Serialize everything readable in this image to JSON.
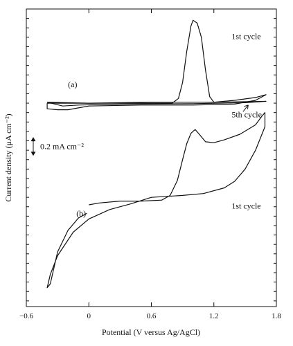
{
  "chart_data": {
    "type": "line",
    "xlabel": "Potential (V versus Ag/AgCl)",
    "ylabel": "Current density (μA cm⁻²)",
    "xlim": [
      -0.6,
      1.8
    ],
    "ylim": [
      -2.16,
      1.0
    ],
    "x_ticks": [
      -0.6,
      0,
      0.6,
      1.2,
      1.8
    ],
    "x_tick_labels": [
      "−0.6",
      "0",
      "0.6",
      "1.2",
      "1.8"
    ],
    "y_minor_step": 0.1,
    "grid": false,
    "scale_bar": {
      "label": "0.2 mA cm⁻²",
      "value": 0.2,
      "y_from": -0.56,
      "y_to": -0.36
    },
    "annotations": [
      {
        "text": "(a)",
        "x": -0.2,
        "y": 0.17
      },
      {
        "text": "1st cycle",
        "x": 1.37,
        "y": 0.68
      },
      {
        "text": "5th cycle",
        "x": 1.37,
        "y": -0.15
      },
      {
        "text": "(b)",
        "x": -0.12,
        "y": -1.2
      },
      {
        "text": "1st cycle",
        "x": 1.37,
        "y": -1.12
      }
    ],
    "series": [
      {
        "points": [
          [
            -0.4,
            0.0
          ],
          [
            0.0,
            0.0
          ],
          [
            0.4,
            0.0
          ],
          [
            0.8,
            0.0
          ],
          [
            0.86,
            0.05
          ],
          [
            0.9,
            0.22
          ],
          [
            0.94,
            0.55
          ],
          [
            0.98,
            0.82
          ],
          [
            1.0,
            0.88
          ],
          [
            1.04,
            0.85
          ],
          [
            1.08,
            0.7
          ],
          [
            1.12,
            0.35
          ],
          [
            1.16,
            0.07
          ],
          [
            1.2,
            0.01
          ],
          [
            1.4,
            0.03
          ],
          [
            1.6,
            0.06
          ],
          [
            1.7,
            0.09
          ],
          [
            1.6,
            0.03
          ],
          [
            1.4,
            -0.01
          ],
          [
            1.0,
            -0.02
          ],
          [
            0.5,
            -0.02
          ],
          [
            0.0,
            -0.03
          ],
          [
            -0.1,
            -0.05
          ],
          [
            -0.2,
            -0.07
          ],
          [
            -0.3,
            -0.07
          ],
          [
            -0.4,
            -0.06
          ],
          [
            -0.4,
            0.0
          ]
        ]
      },
      {
        "points": [
          [
            -0.4,
            0.01
          ],
          [
            0.0,
            0.0
          ],
          [
            0.6,
            0.01
          ],
          [
            1.2,
            0.01
          ],
          [
            1.7,
            0.02
          ],
          [
            1.5,
            0.005
          ],
          [
            1.0,
            -0.005
          ],
          [
            0.3,
            -0.01
          ],
          [
            -0.1,
            -0.02
          ],
          [
            -0.25,
            -0.03
          ],
          [
            -0.4,
            0.01
          ]
        ]
      },
      {
        "points": [
          [
            0.0,
            -1.08
          ],
          [
            0.1,
            -1.06
          ],
          [
            0.3,
            -1.04
          ],
          [
            0.5,
            -1.04
          ],
          [
            0.7,
            -1.03
          ],
          [
            0.78,
            -0.98
          ],
          [
            0.85,
            -0.82
          ],
          [
            0.9,
            -0.6
          ],
          [
            0.94,
            -0.43
          ],
          [
            0.98,
            -0.32
          ],
          [
            1.02,
            -0.28
          ],
          [
            1.06,
            -0.33
          ],
          [
            1.12,
            -0.41
          ],
          [
            1.2,
            -0.42
          ],
          [
            1.3,
            -0.39
          ],
          [
            1.45,
            -0.33
          ],
          [
            1.6,
            -0.23
          ],
          [
            1.66,
            -0.14
          ],
          [
            1.69,
            -0.1
          ],
          [
            1.69,
            -0.25
          ],
          [
            1.6,
            -0.5
          ],
          [
            1.5,
            -0.7
          ],
          [
            1.4,
            -0.83
          ],
          [
            1.3,
            -0.9
          ],
          [
            1.1,
            -0.96
          ],
          [
            0.9,
            -0.98
          ],
          [
            0.6,
            -1.0
          ],
          [
            0.4,
            -1.07
          ],
          [
            0.2,
            -1.13
          ],
          [
            0.0,
            -1.23
          ],
          [
            -0.15,
            -1.37
          ],
          [
            -0.3,
            -1.62
          ],
          [
            -0.37,
            -1.82
          ],
          [
            -0.4,
            -1.96
          ],
          [
            -0.37,
            -1.92
          ],
          [
            -0.3,
            -1.58
          ],
          [
            -0.2,
            -1.35
          ],
          [
            -0.1,
            -1.22
          ],
          [
            -0.02,
            -1.17
          ]
        ]
      }
    ]
  }
}
